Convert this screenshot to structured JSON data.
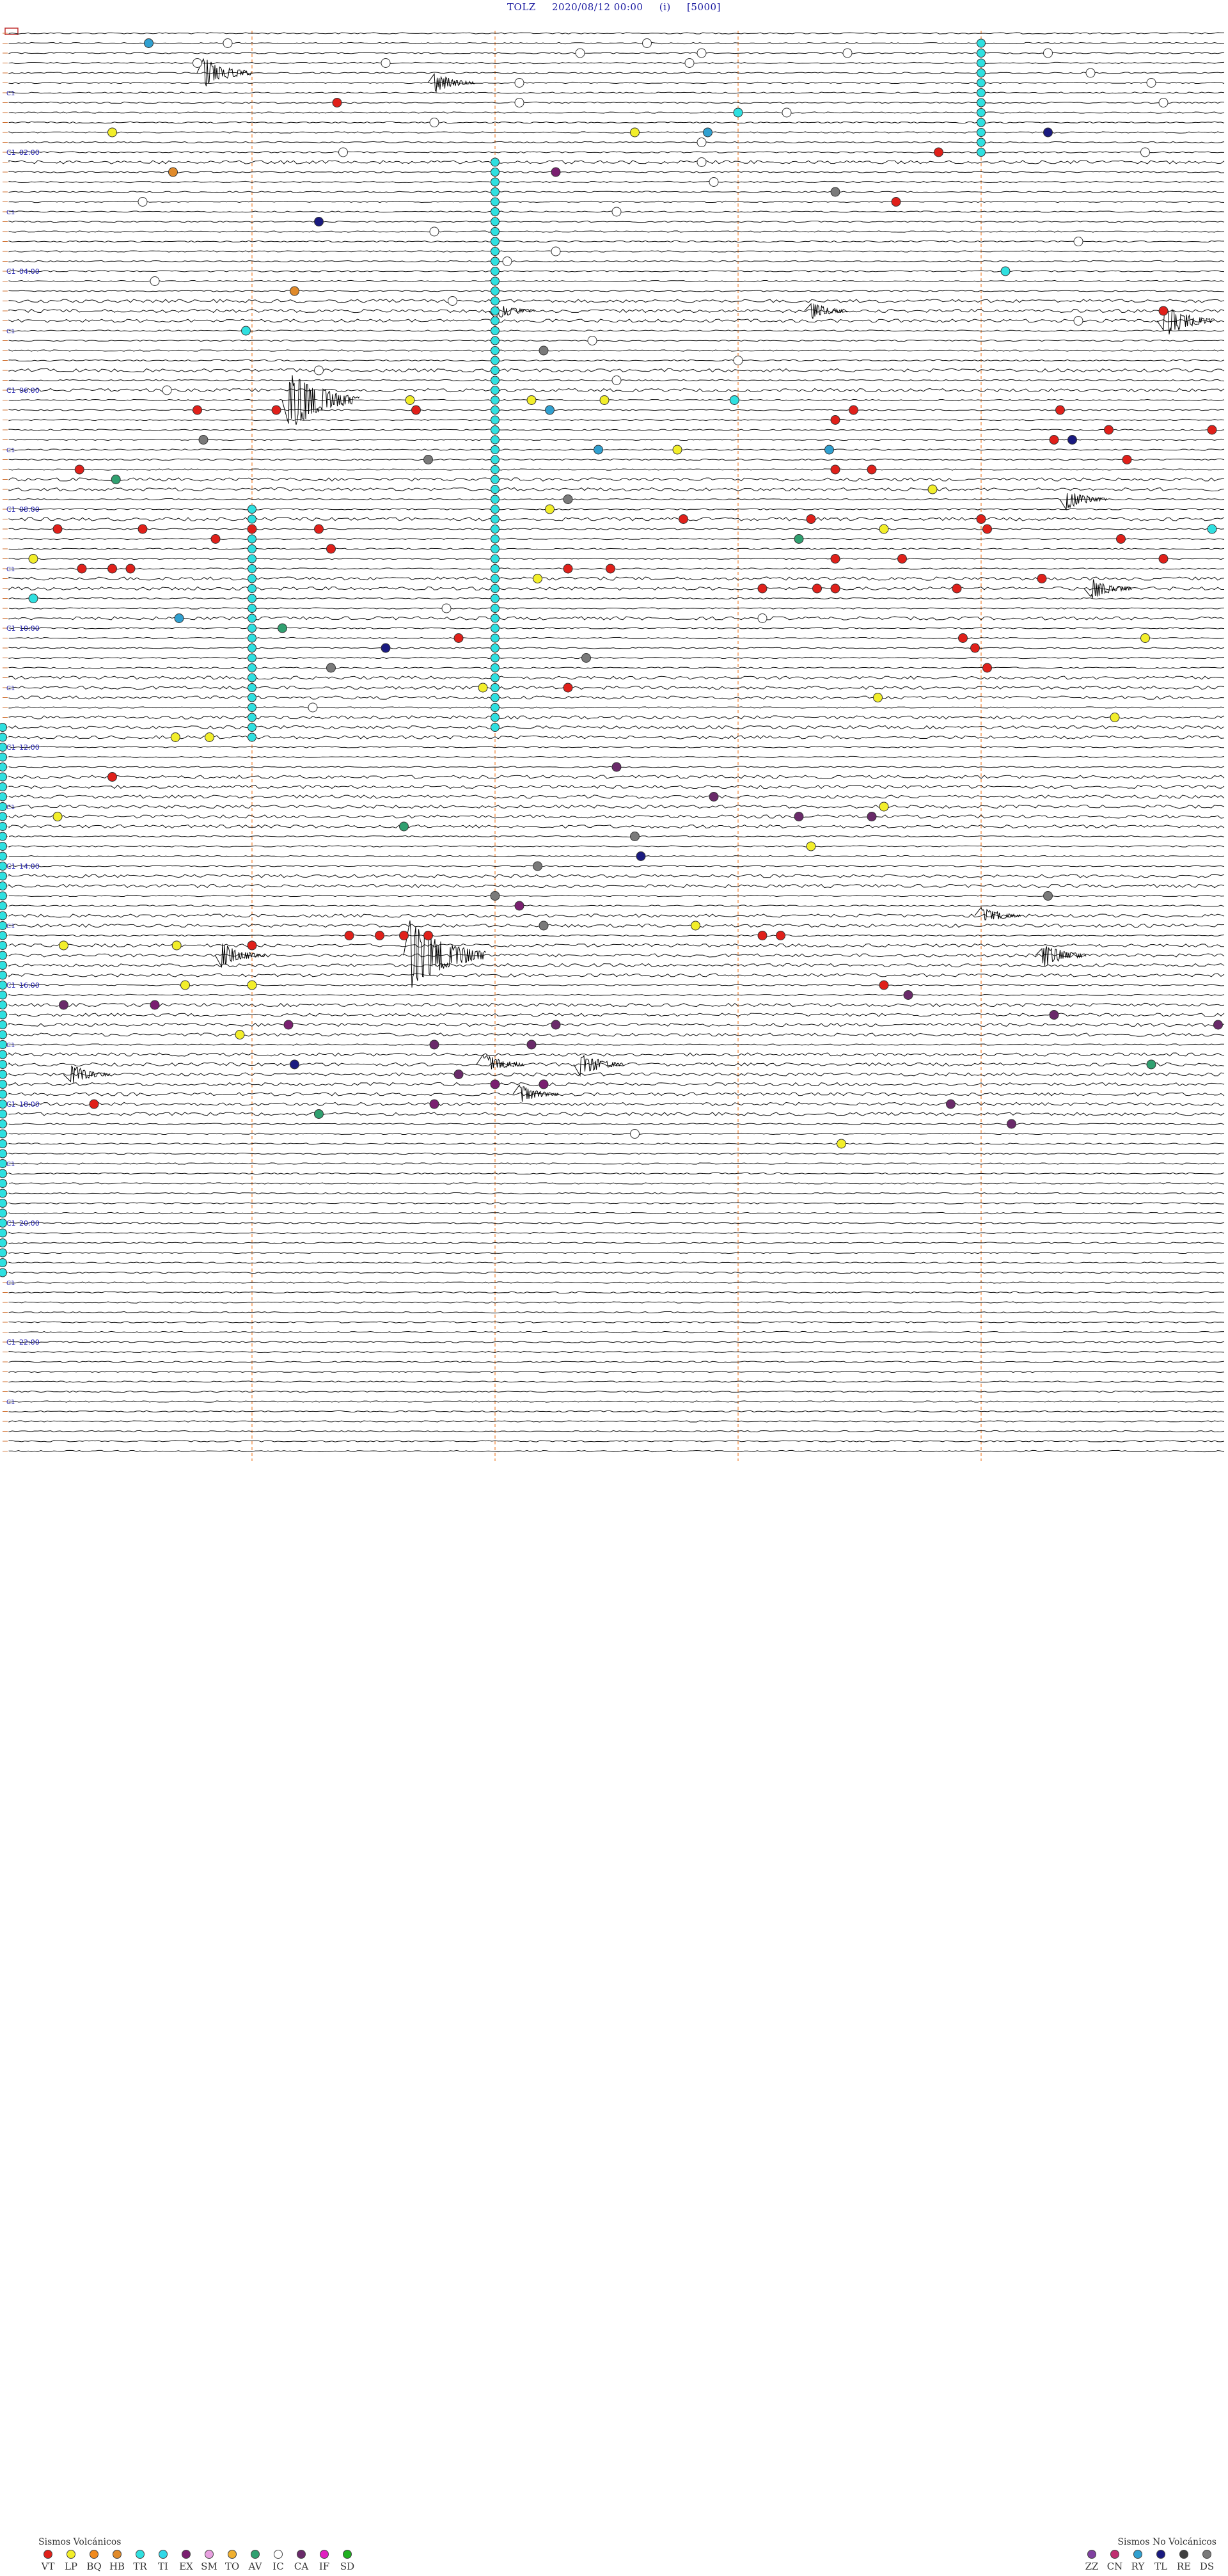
{
  "header": {
    "station": "TOLZ",
    "datetime": "2020/08/12 00:00",
    "component": "(i)",
    "scale": "[5000]"
  },
  "chart_data": {
    "type": "seismogram-helicorder",
    "lines_per_hour": 6,
    "hours": 24,
    "hour_labels": [
      "02:00",
      "04:00",
      "06:00",
      "08:00",
      "10:00",
      "12:00",
      "14:00",
      "16:00",
      "18:00",
      "20:00",
      "22:00"
    ],
    "row_marker_label": "C1",
    "event_colors": {
      "VT": "#e0201a",
      "LP": "#f2ee2a",
      "BQ": "#f08a1e",
      "HB": "#e08a2a",
      "TR": "#2fe0e0",
      "TI": "#30d8e8",
      "EX": "#7a1f70",
      "SM": "#e8a0e0",
      "TO": "#f0b030",
      "AV": "#30a070",
      "IC": "#ffffff",
      "CA": "#6a2a6a",
      "IF": "#e020c0",
      "SD": "#20b020",
      "ZZ": "#8040a0",
      "CN": "#c03070",
      "RY": "#30a0d0",
      "TL": "#1a1a80",
      "RE": "#404040",
      "DS": "#7a7a7a"
    },
    "legend_volcanic": {
      "title": "Sismos Volcánicos",
      "items": [
        {
          "code": "VT",
          "color": "#e0201a"
        },
        {
          "code": "LP",
          "color": "#f2ee2a"
        },
        {
          "code": "BQ",
          "color": "#f08a1e"
        },
        {
          "code": "HB",
          "color": "#e08a2a"
        },
        {
          "code": "TR",
          "color": "#2fe0e0"
        },
        {
          "code": "TI",
          "color": "#30d8e8"
        },
        {
          "code": "EX",
          "color": "#7a1f70"
        },
        {
          "code": "SM",
          "color": "#e8a0e0"
        },
        {
          "code": "TO",
          "color": "#f0b030"
        },
        {
          "code": "AV",
          "color": "#30a070"
        },
        {
          "code": "IC",
          "color": "#ffffff"
        },
        {
          "code": "CA",
          "color": "#6a2a6a"
        },
        {
          "code": "IF",
          "color": "#e020c0"
        },
        {
          "code": "SD",
          "color": "#20b020"
        }
      ]
    },
    "legend_nonvolcanic": {
      "title": "Sismos No Volcánicos",
      "items": [
        {
          "code": "ZZ",
          "color": "#8040a0"
        },
        {
          "code": "CN",
          "color": "#c03070"
        },
        {
          "code": "RY",
          "color": "#30a0d0"
        },
        {
          "code": "TL",
          "color": "#1a1a80"
        },
        {
          "code": "RE",
          "color": "#404040"
        },
        {
          "code": "DS",
          "color": "#7a7a7a"
        }
      ]
    },
    "events": [
      {
        "line": 1,
        "t": 0.115,
        "type": "RY"
      },
      {
        "line": 1,
        "t": 0.18,
        "type": "IC"
      },
      {
        "line": 1,
        "t": 0.525,
        "type": "IC"
      },
      {
        "line": 2,
        "t": 0.47,
        "type": "IC"
      },
      {
        "line": 2,
        "t": 0.57,
        "type": "IC"
      },
      {
        "line": 2,
        "t": 0.69,
        "type": "IC"
      },
      {
        "line": 2,
        "t": 0.855,
        "type": "IC"
      },
      {
        "line": 3,
        "t": 0.155,
        "type": "IC"
      },
      {
        "line": 3,
        "t": 0.56,
        "type": "IC"
      },
      {
        "line": 3,
        "t": 0.31,
        "type": "IC"
      },
      {
        "line": 4,
        "t": 0.89,
        "type": "IC"
      },
      {
        "line": 5,
        "t": 0.42,
        "type": "IC"
      },
      {
        "line": 5,
        "t": 0.94,
        "type": "IC"
      },
      {
        "line": 7,
        "t": 0.27,
        "type": "VT"
      },
      {
        "line": 7,
        "t": 0.42,
        "type": "IC"
      },
      {
        "line": 7,
        "t": 0.95,
        "type": "IC"
      },
      {
        "line": 8,
        "t": 0.6,
        "type": "TR"
      },
      {
        "line": 8,
        "t": 0.64,
        "type": "IC"
      },
      {
        "line": 9,
        "t": 0.35,
        "type": "IC"
      },
      {
        "line": 10,
        "t": 0.085,
        "type": "LP"
      },
      {
        "line": 10,
        "t": 0.515,
        "type": "LP"
      },
      {
        "line": 10,
        "t": 0.575,
        "type": "RY"
      },
      {
        "line": 10,
        "t": 0.855,
        "type": "TL"
      },
      {
        "line": 11,
        "t": 0.57,
        "type": "IC"
      },
      {
        "line": 12,
        "t": 0.275,
        "type": "IC"
      },
      {
        "line": 12,
        "t": 0.765,
        "type": "VT"
      },
      {
        "line": 12,
        "t": 0.935,
        "type": "IC"
      },
      {
        "line": 13,
        "t": 0.57,
        "type": "IC"
      },
      {
        "line": 14,
        "t": 0.135,
        "type": "HB"
      },
      {
        "line": 14,
        "t": 0.45,
        "type": "EX"
      },
      {
        "line": 15,
        "t": 0.58,
        "type": "IC"
      },
      {
        "line": 16,
        "t": 0.68,
        "type": "DS"
      },
      {
        "line": 17,
        "t": 0.11,
        "type": "IC"
      },
      {
        "line": 17,
        "t": 0.73,
        "type": "VT"
      },
      {
        "line": 18,
        "t": 0.5,
        "type": "IC"
      },
      {
        "line": 19,
        "t": 0.255,
        "type": "TL"
      },
      {
        "line": 20,
        "t": 0.35,
        "type": "IC"
      },
      {
        "line": 21,
        "t": 0.88,
        "type": "IC"
      },
      {
        "line": 22,
        "t": 0.45,
        "type": "IC"
      },
      {
        "line": 23,
        "t": 0.41,
        "type": "IC"
      },
      {
        "line": 24,
        "t": 0.82,
        "type": "TR"
      },
      {
        "line": 25,
        "t": 0.12,
        "type": "IC"
      },
      {
        "line": 26,
        "t": 0.235,
        "type": "HB"
      },
      {
        "line": 27,
        "t": 0.365,
        "type": "IC"
      },
      {
        "line": 28,
        "t": 0.95,
        "type": "VT"
      },
      {
        "line": 29,
        "t": 0.88,
        "type": "IC"
      },
      {
        "line": 30,
        "t": 0.195,
        "type": "TR"
      },
      {
        "line": 31,
        "t": 0.48,
        "type": "IC"
      },
      {
        "line": 32,
        "t": 0.44,
        "type": "DS"
      },
      {
        "line": 33,
        "t": 0.6,
        "type": "IC"
      },
      {
        "line": 34,
        "t": 0.255,
        "type": "IC"
      },
      {
        "line": 35,
        "t": 0.5,
        "type": "IC"
      },
      {
        "line": 36,
        "t": 0.13,
        "type": "IC"
      },
      {
        "line": 37,
        "t": 0.33,
        "type": "LP"
      },
      {
        "line": 37,
        "t": 0.43,
        "type": "LP"
      },
      {
        "line": 37,
        "t": 0.49,
        "type": "LP"
      },
      {
        "line": 37,
        "t": 0.597,
        "type": "TR"
      },
      {
        "line": 38,
        "t": 0.155,
        "type": "VT"
      },
      {
        "line": 38,
        "t": 0.22,
        "type": "VT"
      },
      {
        "line": 38,
        "t": 0.335,
        "type": "VT"
      },
      {
        "line": 38,
        "t": 0.445,
        "type": "RY"
      },
      {
        "line": 38,
        "t": 0.695,
        "type": "VT"
      },
      {
        "line": 38,
        "t": 0.865,
        "type": "VT"
      },
      {
        "line": 39,
        "t": 0.68,
        "type": "VT"
      },
      {
        "line": 40,
        "t": 0.905,
        "type": "VT"
      },
      {
        "line": 40,
        "t": 0.99,
        "type": "VT"
      },
      {
        "line": 41,
        "t": 0.16,
        "type": "DS"
      },
      {
        "line": 41,
        "t": 0.86,
        "type": "VT"
      },
      {
        "line": 41,
        "t": 0.875,
        "type": "TL"
      },
      {
        "line": 42,
        "t": 0.485,
        "type": "RY"
      },
      {
        "line": 42,
        "t": 0.55,
        "type": "LP"
      },
      {
        "line": 42,
        "t": 0.675,
        "type": "RY"
      },
      {
        "line": 43,
        "t": 0.345,
        "type": "DS"
      },
      {
        "line": 43,
        "t": 0.92,
        "type": "VT"
      },
      {
        "line": 44,
        "t": 0.058,
        "type": "VT"
      },
      {
        "line": 44,
        "t": 0.68,
        "type": "VT"
      },
      {
        "line": 44,
        "t": 0.71,
        "type": "VT"
      },
      {
        "line": 45,
        "t": 0.088,
        "type": "AV"
      },
      {
        "line": 46,
        "t": 0.76,
        "type": "LP"
      },
      {
        "line": 47,
        "t": 0.46,
        "type": "DS"
      },
      {
        "line": 48,
        "t": 0.445,
        "type": "LP"
      },
      {
        "line": 49,
        "t": 0.555,
        "type": "VT"
      },
      {
        "line": 49,
        "t": 0.66,
        "type": "VT"
      },
      {
        "line": 49,
        "t": 0.8,
        "type": "VT"
      },
      {
        "line": 50,
        "t": 0.04,
        "type": "VT"
      },
      {
        "line": 50,
        "t": 0.11,
        "type": "VT"
      },
      {
        "line": 50,
        "t": 0.2,
        "type": "VT"
      },
      {
        "line": 50,
        "t": 0.255,
        "type": "VT"
      },
      {
        "line": 50,
        "t": 0.72,
        "type": "LP"
      },
      {
        "line": 50,
        "t": 0.805,
        "type": "VT"
      },
      {
        "line": 50,
        "t": 0.99,
        "type": "TR"
      },
      {
        "line": 51,
        "t": 0.17,
        "type": "VT"
      },
      {
        "line": 51,
        "t": 0.65,
        "type": "AV"
      },
      {
        "line": 51,
        "t": 0.915,
        "type": "VT"
      },
      {
        "line": 52,
        "t": 0.265,
        "type": "VT"
      },
      {
        "line": 53,
        "t": 0.02,
        "type": "LP"
      },
      {
        "line": 53,
        "t": 0.68,
        "type": "VT"
      },
      {
        "line": 53,
        "t": 0.735,
        "type": "VT"
      },
      {
        "line": 53,
        "t": 0.95,
        "type": "VT"
      },
      {
        "line": 54,
        "t": 0.06,
        "type": "VT"
      },
      {
        "line": 54,
        "t": 0.085,
        "type": "VT"
      },
      {
        "line": 54,
        "t": 0.1,
        "type": "VT"
      },
      {
        "line": 54,
        "t": 0.46,
        "type": "VT"
      },
      {
        "line": 54,
        "t": 0.495,
        "type": "VT"
      },
      {
        "line": 55,
        "t": 0.435,
        "type": "LP"
      },
      {
        "line": 55,
        "t": 0.85,
        "type": "VT"
      },
      {
        "line": 56,
        "t": 0.78,
        "type": "VT"
      },
      {
        "line": 56,
        "t": 0.62,
        "type": "VT"
      },
      {
        "line": 56,
        "t": 0.665,
        "type": "VT"
      },
      {
        "line": 56,
        "t": 0.68,
        "type": "VT"
      },
      {
        "line": 57,
        "t": 0.02,
        "type": "TR"
      },
      {
        "line": 58,
        "t": 0.36,
        "type": "IC"
      },
      {
        "line": 59,
        "t": 0.14,
        "type": "RY"
      },
      {
        "line": 59,
        "t": 0.62,
        "type": "IC"
      },
      {
        "line": 60,
        "t": 0.225,
        "type": "AV"
      },
      {
        "line": 61,
        "t": 0.37,
        "type": "VT"
      },
      {
        "line": 61,
        "t": 0.785,
        "type": "VT"
      },
      {
        "line": 61,
        "t": 0.935,
        "type": "LP"
      },
      {
        "line": 62,
        "t": 0.31,
        "type": "TL"
      },
      {
        "line": 62,
        "t": 0.795,
        "type": "VT"
      },
      {
        "line": 63,
        "t": 0.475,
        "type": "DS"
      },
      {
        "line": 64,
        "t": 0.265,
        "type": "DS"
      },
      {
        "line": 64,
        "t": 0.805,
        "type": "VT"
      },
      {
        "line": 66,
        "t": 0.39,
        "type": "LP"
      },
      {
        "line": 66,
        "t": 0.46,
        "type": "VT"
      },
      {
        "line": 67,
        "t": 0.715,
        "type": "LP"
      },
      {
        "line": 68,
        "t": 0.25,
        "type": "IC"
      },
      {
        "line": 69,
        "t": 0.91,
        "type": "LP"
      },
      {
        "line": 71,
        "t": 0.137,
        "type": "LP"
      },
      {
        "line": 71,
        "t": 0.165,
        "type": "LP"
      },
      {
        "line": 74,
        "t": 0.5,
        "type": "CA"
      },
      {
        "line": 75,
        "t": 0.085,
        "type": "VT"
      },
      {
        "line": 77,
        "t": 0.58,
        "type": "CA"
      },
      {
        "line": 78,
        "t": 0.72,
        "type": "LP"
      },
      {
        "line": 79,
        "t": 0.04,
        "type": "LP"
      },
      {
        "line": 79,
        "t": 0.65,
        "type": "CA"
      },
      {
        "line": 79,
        "t": 0.71,
        "type": "CA"
      },
      {
        "line": 80,
        "t": 0.325,
        "type": "AV"
      },
      {
        "line": 81,
        "t": 0.515,
        "type": "DS"
      },
      {
        "line": 82,
        "t": 0.66,
        "type": "LP"
      },
      {
        "line": 83,
        "t": 0.52,
        "type": "TL"
      },
      {
        "line": 84,
        "t": 0.435,
        "type": "DS"
      },
      {
        "line": 87,
        "t": 0.4,
        "type": "DS"
      },
      {
        "line": 87,
        "t": 0.855,
        "type": "DS"
      },
      {
        "line": 88,
        "t": 0.42,
        "type": "EX"
      },
      {
        "line": 90,
        "t": 0.44,
        "type": "DS"
      },
      {
        "line": 90,
        "t": 0.565,
        "type": "LP"
      },
      {
        "line": 91,
        "t": 0.28,
        "type": "VT"
      },
      {
        "line": 91,
        "t": 0.305,
        "type": "VT"
      },
      {
        "line": 91,
        "t": 0.325,
        "type": "VT"
      },
      {
        "line": 91,
        "t": 0.345,
        "type": "VT"
      },
      {
        "line": 91,
        "t": 0.62,
        "type": "VT"
      },
      {
        "line": 91,
        "t": 0.635,
        "type": "VT"
      },
      {
        "line": 92,
        "t": 0.045,
        "type": "LP"
      },
      {
        "line": 92,
        "t": 0.138,
        "type": "LP"
      },
      {
        "line": 92,
        "t": 0.2,
        "type": "VT"
      },
      {
        "line": 96,
        "t": 0.145,
        "type": "LP"
      },
      {
        "line": 96,
        "t": 0.2,
        "type": "LP"
      },
      {
        "line": 96,
        "t": 0.72,
        "type": "VT"
      },
      {
        "line": 97,
        "t": 0.74,
        "type": "CA"
      },
      {
        "line": 98,
        "t": 0.045,
        "type": "CA"
      },
      {
        "line": 98,
        "t": 0.12,
        "type": "EX"
      },
      {
        "line": 99,
        "t": 0.86,
        "type": "CA"
      },
      {
        "line": 100,
        "t": 0.23,
        "type": "EX"
      },
      {
        "line": 100,
        "t": 0.45,
        "type": "CA"
      },
      {
        "line": 100,
        "t": 0.995,
        "type": "CA"
      },
      {
        "line": 101,
        "t": 0.19,
        "type": "LP"
      },
      {
        "line": 102,
        "t": 0.35,
        "type": "CA"
      },
      {
        "line": 102,
        "t": 0.43,
        "type": "CA"
      },
      {
        "line": 104,
        "t": 0.235,
        "type": "TL"
      },
      {
        "line": 104,
        "t": 0.94,
        "type": "AV"
      },
      {
        "line": 105,
        "t": 0.37,
        "type": "CA"
      },
      {
        "line": 106,
        "t": 0.4,
        "type": "EX"
      },
      {
        "line": 106,
        "t": 0.44,
        "type": "EX"
      },
      {
        "line": 108,
        "t": 0.07,
        "type": "VT"
      },
      {
        "line": 108,
        "t": 0.35,
        "type": "EX"
      },
      {
        "line": 108,
        "t": 0.775,
        "type": "CA"
      },
      {
        "line": 109,
        "t": 0.255,
        "type": "AV"
      },
      {
        "line": 110,
        "t": 0.825,
        "type": "CA"
      },
      {
        "line": 111,
        "t": 0.515,
        "type": "IC"
      },
      {
        "line": 112,
        "t": 0.685,
        "type": "LP"
      }
    ],
    "big_events": [
      {
        "line": 4,
        "t": 0.16,
        "amp": 1.8
      },
      {
        "line": 5,
        "t": 0.35,
        "amp": 1.2
      },
      {
        "line": 28,
        "t": 0.4,
        "amp": 1.1
      },
      {
        "line": 28,
        "t": 0.66,
        "amp": 1.0
      },
      {
        "line": 29,
        "t": 0.95,
        "amp": 2.0
      },
      {
        "line": 37,
        "t": 0.23,
        "amp": 3.6
      },
      {
        "line": 47,
        "t": 0.87,
        "amp": 1.2
      },
      {
        "line": 56,
        "t": 0.89,
        "amp": 1.3
      },
      {
        "line": 89,
        "t": 0.8,
        "amp": 1.1
      },
      {
        "line": 93,
        "t": 0.33,
        "amp": 4.0
      },
      {
        "line": 93,
        "t": 0.175,
        "amp": 1.4
      },
      {
        "line": 93,
        "t": 0.85,
        "amp": 1.5
      },
      {
        "line": 104,
        "t": 0.47,
        "amp": 1.4
      },
      {
        "line": 104,
        "t": 0.39,
        "amp": 1.3
      },
      {
        "line": 105,
        "t": 0.05,
        "amp": 1.2
      },
      {
        "line": 107,
        "t": 0.42,
        "amp": 1.1
      }
    ],
    "noisy_lines": [
      13,
      27,
      28,
      29,
      34,
      36,
      45,
      46,
      49,
      55,
      56,
      59,
      65,
      66,
      67,
      69,
      70,
      71,
      75,
      76,
      77,
      78,
      79,
      80,
      85,
      86,
      89,
      90,
      92,
      93,
      94,
      95,
      98,
      99,
      100,
      101,
      103,
      104,
      105,
      106,
      107,
      108,
      109
    ],
    "tr_columns": [
      {
        "t": 0.8,
        "from": 1,
        "to": 12
      },
      {
        "t": 0.4,
        "from": 13,
        "to": 70
      },
      {
        "t": 0.2,
        "from": 48,
        "to": 71
      },
      {
        "t": 0.0,
        "from": 70,
        "to": 125
      }
    ]
  }
}
